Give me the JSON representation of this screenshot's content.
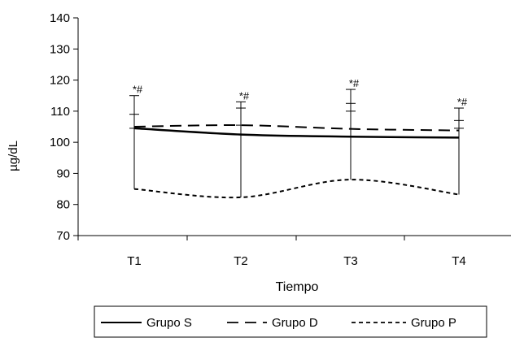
{
  "chart_data": {
    "type": "line",
    "categories": [
      "T1",
      "T2",
      "T3",
      "T4"
    ],
    "xlabel": "Tiempo",
    "ylabel": "µg/dL",
    "ylim": [
      70,
      140
    ],
    "yticks": [
      70,
      80,
      90,
      100,
      110,
      120,
      130,
      140
    ],
    "grid": false,
    "legend_position": "bottom",
    "series": [
      {
        "name": "Grupo S",
        "style": "solid",
        "values": [
          104.5,
          102.5,
          101.8,
          101.5
        ],
        "error_upper": [
          115,
          113,
          117,
          111
        ]
      },
      {
        "name": "Grupo D",
        "style": "dashed",
        "values": [
          105,
          105.5,
          104.3,
          103.8
        ],
        "error_upper": [
          109,
          111,
          112.5,
          107
        ]
      },
      {
        "name": "Grupo P",
        "style": "dotted",
        "values": [
          85,
          82.3,
          88,
          83.2
        ],
        "error_upper": [
          104.5,
          105.5,
          110,
          104.5
        ]
      }
    ],
    "annotations": [
      "*#",
      "*#",
      "*#",
      "*#"
    ]
  }
}
